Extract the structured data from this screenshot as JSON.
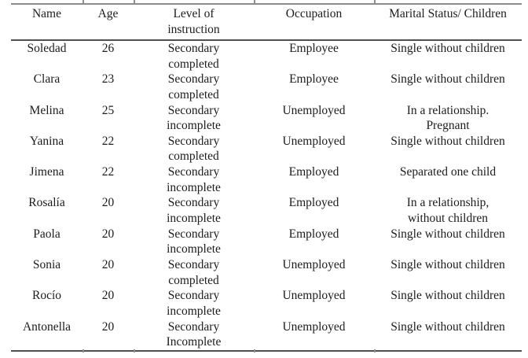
{
  "table": {
    "columns": [
      {
        "key": "name",
        "lines": [
          "Name"
        ]
      },
      {
        "key": "age",
        "lines": [
          "Age"
        ]
      },
      {
        "key": "level",
        "lines": [
          "Level of",
          "instruction"
        ]
      },
      {
        "key": "occupation",
        "lines": [
          "Occupation"
        ]
      },
      {
        "key": "marital",
        "lines": [
          "Marital Status/ Children"
        ]
      }
    ],
    "rows": [
      {
        "name": [
          "Soledad"
        ],
        "age": [
          "26"
        ],
        "level": [
          "Secondary",
          "completed"
        ],
        "occupation": [
          "Employee"
        ],
        "marital": [
          "Single without children"
        ]
      },
      {
        "name": [
          "Clara"
        ],
        "age": [
          "23"
        ],
        "level": [
          "Secondary",
          "completed"
        ],
        "occupation": [
          "Employee"
        ],
        "marital": [
          "Single without children"
        ]
      },
      {
        "name": [
          "Melina"
        ],
        "age": [
          "25"
        ],
        "level": [
          "Secondary",
          "incomplete"
        ],
        "occupation": [
          "Unemployed"
        ],
        "marital": [
          "In a relationship.",
          "Pregnant"
        ]
      },
      {
        "name": [
          "Yanina"
        ],
        "age": [
          "22"
        ],
        "level": [
          "Secondary",
          "completed"
        ],
        "occupation": [
          "Unemployed"
        ],
        "marital": [
          "Single without children"
        ]
      },
      {
        "name": [
          "Jimena"
        ],
        "age": [
          "22"
        ],
        "level": [
          "Secondary",
          "incomplete"
        ],
        "occupation": [
          "Employed"
        ],
        "marital": [
          "Separated one child"
        ]
      },
      {
        "name": [
          "Rosalía"
        ],
        "age": [
          "20"
        ],
        "level": [
          "Secondary",
          "incomplete"
        ],
        "occupation": [
          "Employed"
        ],
        "marital": [
          "In a relationship,",
          "without children"
        ]
      },
      {
        "name": [
          "Paola"
        ],
        "age": [
          "20"
        ],
        "level": [
          "Secondary",
          "incomplete"
        ],
        "occupation": [
          "Employed"
        ],
        "marital": [
          "Single without children"
        ]
      },
      {
        "name": [
          "Sonia"
        ],
        "age": [
          "20"
        ],
        "level": [
          "Secondary",
          "completed"
        ],
        "occupation": [
          "Unemployed"
        ],
        "marital": [
          "Single without children"
        ]
      },
      {
        "name": [
          "Rocío"
        ],
        "age": [
          "20"
        ],
        "level": [
          "Secondary",
          "incomplete"
        ],
        "occupation": [
          "Unemployed"
        ],
        "marital": [
          "Single without children"
        ]
      },
      {
        "name": [
          "Antonella"
        ],
        "age": [
          "20"
        ],
        "level": [
          "Secondary",
          "Incomplete"
        ],
        "occupation": [
          "Unemployed"
        ],
        "marital": [
          "Single without children"
        ]
      }
    ]
  }
}
